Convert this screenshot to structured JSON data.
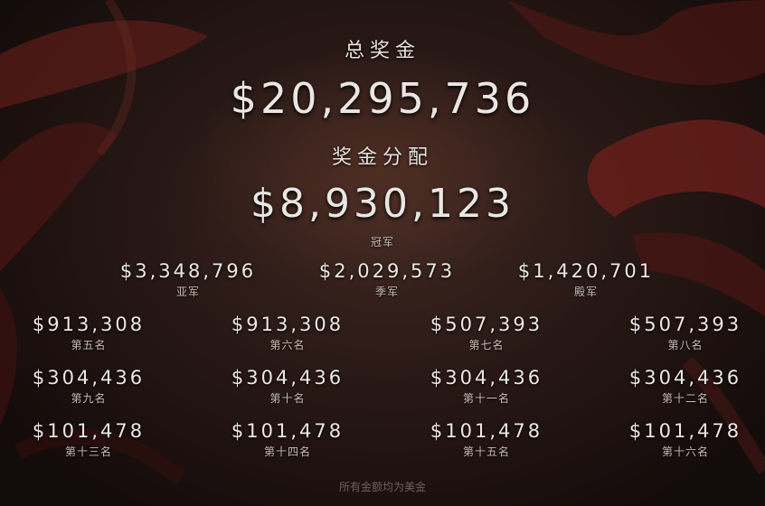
{
  "header": {
    "total_label": "总奖金",
    "total_amount": "$20,295,736",
    "distribution_label": "奖金分配"
  },
  "champion": {
    "amount": "$8,930,123",
    "label": "冠军"
  },
  "top_places": [
    {
      "amount": "$3,348,796",
      "label": "亚军"
    },
    {
      "amount": "$2,029,573",
      "label": "季军"
    },
    {
      "amount": "$1,420,701",
      "label": "殿军"
    }
  ],
  "places": [
    {
      "amount": "$913,308",
      "label": "第五名"
    },
    {
      "amount": "$913,308",
      "label": "第六名"
    },
    {
      "amount": "$507,393",
      "label": "第七名"
    },
    {
      "amount": "$507,393",
      "label": "第八名"
    },
    {
      "amount": "$304,436",
      "label": "第九名"
    },
    {
      "amount": "$304,436",
      "label": "第十名"
    },
    {
      "amount": "$304,436",
      "label": "第十一名"
    },
    {
      "amount": "$304,436",
      "label": "第十二名"
    },
    {
      "amount": "$101,478",
      "label": "第十三名"
    },
    {
      "amount": "$101,478",
      "label": "第十四名"
    },
    {
      "amount": "$101,478",
      "label": "第十五名"
    },
    {
      "amount": "$101,478",
      "label": "第十六名"
    }
  ],
  "footnote": "所有金额均为美金"
}
